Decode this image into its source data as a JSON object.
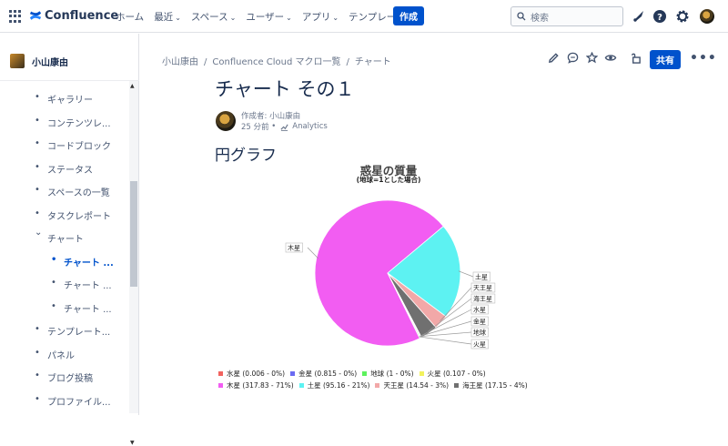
{
  "topbar": {
    "app_name": "Confluence",
    "nav": [
      {
        "label": "ホーム",
        "dropdown": false
      },
      {
        "label": "最近",
        "dropdown": true
      },
      {
        "label": "スペース",
        "dropdown": true
      },
      {
        "label": "ユーザー",
        "dropdown": true
      },
      {
        "label": "アプリ",
        "dropdown": true
      },
      {
        "label": "テンプレート",
        "dropdown": false
      }
    ],
    "create_label": "作成",
    "search_placeholder": "検索",
    "icons": [
      "notifications-icon",
      "help-icon",
      "settings-icon",
      "profile-avatar"
    ]
  },
  "sidebar": {
    "space_name": "小山康由",
    "items": [
      {
        "label": "ギャラリー",
        "level": 0,
        "active": false
      },
      {
        "label": "コンテンツレ...",
        "level": 0,
        "active": false
      },
      {
        "label": "コードブロック",
        "level": 0,
        "active": false
      },
      {
        "label": "ステータス",
        "level": 0,
        "active": false
      },
      {
        "label": "スペースの一覧",
        "level": 0,
        "active": false
      },
      {
        "label": "タスクレポート",
        "level": 0,
        "active": false
      },
      {
        "label": "チャート",
        "level": 0,
        "active": false,
        "expanded": true
      },
      {
        "label": "チャート ...",
        "level": 1,
        "active": true
      },
      {
        "label": "チャート ...",
        "level": 1,
        "active": false
      },
      {
        "label": "チャート ...",
        "level": 1,
        "active": false
      },
      {
        "label": "テンプレート...",
        "level": 0,
        "active": false
      },
      {
        "label": "パネル",
        "level": 0,
        "active": false
      },
      {
        "label": "ブログ投稿",
        "level": 0,
        "active": false
      },
      {
        "label": "プロファイル...",
        "level": 0,
        "active": false
      }
    ]
  },
  "breadcrumb": [
    "小山康由",
    "Confluence Cloud マクロ一覧",
    "チャート"
  ],
  "page_actions": {
    "icons": [
      "edit-icon",
      "comment-icon",
      "star-icon",
      "watch-icon",
      "restrictions-icon"
    ],
    "share_label": "共有",
    "more_label": "•••"
  },
  "page": {
    "title": "チャート その１",
    "byline": "作成者: 小山康由",
    "time": "25 分前",
    "analytics": "Analytics",
    "heading": "円グラフ"
  },
  "chart_data": {
    "type": "pie",
    "title": "惑星の質量",
    "subtitle": "(地球=1とした場合)",
    "slices": [
      {
        "name": "水星",
        "value": 0.006,
        "pct": 0,
        "color": "#f2635f",
        "label": "水星"
      },
      {
        "name": "金星",
        "value": 0.815,
        "pct": 0,
        "color": "#6b6bf2",
        "label": "金星"
      },
      {
        "name": "地球",
        "value": 1,
        "pct": 0,
        "color": "#5df25d",
        "label": "地球"
      },
      {
        "name": "火星",
        "value": 0.107,
        "pct": 0,
        "color": "#f2f25d",
        "label": "火星"
      },
      {
        "name": "木星",
        "value": 317.83,
        "pct": 71,
        "color": "#f25df2",
        "label": "木星"
      },
      {
        "name": "土星",
        "value": 95.16,
        "pct": 21,
        "color": "#5df2f2",
        "label": "土星"
      },
      {
        "name": "天王星",
        "value": 14.54,
        "pct": 3,
        "color": "#f2a8a8",
        "label": "天王星"
      },
      {
        "name": "海王星",
        "value": 17.15,
        "pct": 4,
        "color": "#707070",
        "label": "海王星"
      }
    ],
    "legend": [
      "水星 (0.006 - 0%)",
      "金星 (0.815 - 0%)",
      "地球 (1 - 0%)",
      "火星 (0.107 - 0%)",
      "木星 (317.83 - 71%)",
      "土星 (95.16 - 21%)",
      "天王星 (14.54 - 3%)",
      "海王星 (17.15 - 4%)"
    ],
    "legend_placement": "bottom"
  }
}
